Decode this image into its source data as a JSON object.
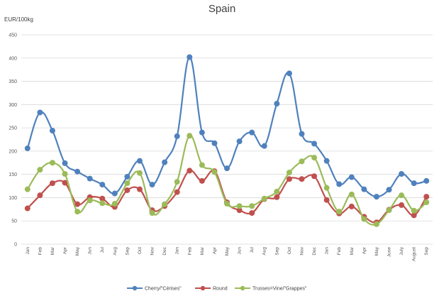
{
  "chart_data": {
    "type": "line",
    "title": "Spain",
    "ylabel": "EUR/100kg",
    "xlabel": "",
    "ylim": [
      0,
      450
    ],
    "yticks": [
      0,
      50,
      100,
      150,
      200,
      250,
      300,
      350,
      400,
      450
    ],
    "grid": true,
    "legend": "bottom",
    "categories": [
      "Jan",
      "Feb",
      "Mar",
      "Apr",
      "May",
      "Jun",
      "Jul",
      "Aug",
      "Sep",
      "Oct",
      "Nov",
      "Dec",
      "Jan",
      "Feb",
      "Mar",
      "Apr",
      "May",
      "Jun",
      "Jul",
      "Aug",
      "Sep",
      "Oct",
      "Nov",
      "Dec",
      "Jan",
      "Feb",
      "Mar",
      "Apr",
      "May",
      "June",
      "July",
      "August",
      "Sep"
    ],
    "series": [
      {
        "name": "Cherry/\"Cérises\"",
        "color": "#4f81bd",
        "values": [
          206,
          283,
          244,
          174,
          156,
          141,
          128,
          109,
          145,
          179,
          128,
          176,
          232,
          402,
          240,
          217,
          163,
          221,
          240,
          211,
          302,
          367,
          237,
          216,
          179,
          129,
          144,
          118,
          102,
          117,
          151,
          131,
          136
        ]
      },
      {
        "name": "Round",
        "color": "#c0504d",
        "values": [
          77,
          105,
          131,
          132,
          86,
          101,
          98,
          80,
          116,
          118,
          73,
          82,
          112,
          158,
          136,
          157,
          90,
          73,
          67,
          97,
          101,
          140,
          140,
          146,
          95,
          66,
          81,
          59,
          47,
          74,
          84,
          62,
          102
        ]
      },
      {
        "name": "Trusses=Vine/\"Grappes\"",
        "color": "#9bbb59",
        "values": [
          118,
          160,
          175,
          151,
          70,
          94,
          88,
          87,
          131,
          153,
          67,
          86,
          134,
          233,
          170,
          155,
          87,
          82,
          82,
          98,
          113,
          154,
          178,
          186,
          121,
          70,
          107,
          54,
          43,
          73,
          105,
          72,
          90
        ]
      }
    ]
  }
}
